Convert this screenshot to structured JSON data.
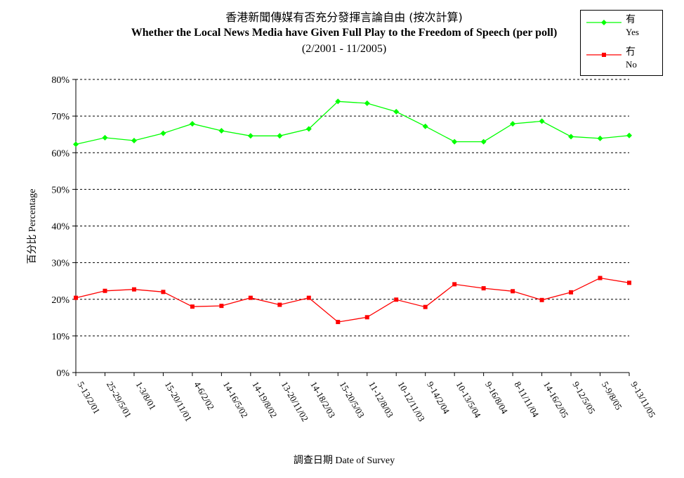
{
  "title": {
    "zh": "香港新聞傳媒有否充分發揮言論自由 (按次計算)",
    "en": "Whether the Local News Media have Given Full Play to the Freedom of Speech (per poll)",
    "range": "(2/2001 - 11/2005)"
  },
  "legend": {
    "yes": {
      "zh": "有",
      "en": "Yes"
    },
    "no": {
      "zh": "冇",
      "en": "No"
    }
  },
  "axes": {
    "x_title_zh": "調查日期",
    "x_title_en": "Date of Survey",
    "y_title_zh": "百分比",
    "y_title_en": "Percentage"
  },
  "chart_data": {
    "type": "line",
    "categories": [
      "5-13/2/01",
      "25-29/5/01",
      "1-3/8/01",
      "15-20/11/01",
      "4-6/2/02",
      "14-16/5/02",
      "14-19/8/02",
      "13-20/11/02",
      "14-18/2/03",
      "15-20/5/03",
      "11-12/8/03",
      "10-12/11/03",
      "9-14/2/04",
      "10-13/5/04",
      "9-16/8/04",
      "8-11/11/04",
      "14-16/2/05",
      "9-12/5/05",
      "5-9/8/05",
      "9-13/11/05"
    ],
    "y_ticks": [
      "0%",
      "10%",
      "20%",
      "30%",
      "40%",
      "50%",
      "60%",
      "70%",
      "80%"
    ],
    "ylim": [
      0,
      80
    ],
    "grid": true,
    "legend_position": "top-right",
    "series": [
      {
        "name": "有 Yes",
        "color": "#00ff00",
        "marker": "diamond",
        "values": [
          62.3,
          64.1,
          63.3,
          65.3,
          67.9,
          66.0,
          64.6,
          64.6,
          66.5,
          74.0,
          73.5,
          71.2,
          67.2,
          63.0,
          63.0,
          67.9,
          68.6,
          64.4,
          63.9,
          64.7
        ]
      },
      {
        "name": "冇 No",
        "color": "#ff0000",
        "marker": "square",
        "values": [
          20.4,
          22.3,
          22.7,
          22.0,
          18.0,
          18.2,
          20.4,
          18.5,
          20.4,
          13.8,
          15.1,
          19.9,
          17.9,
          24.1,
          23.0,
          22.2,
          19.8,
          21.9,
          25.8,
          24.5
        ]
      }
    ]
  }
}
